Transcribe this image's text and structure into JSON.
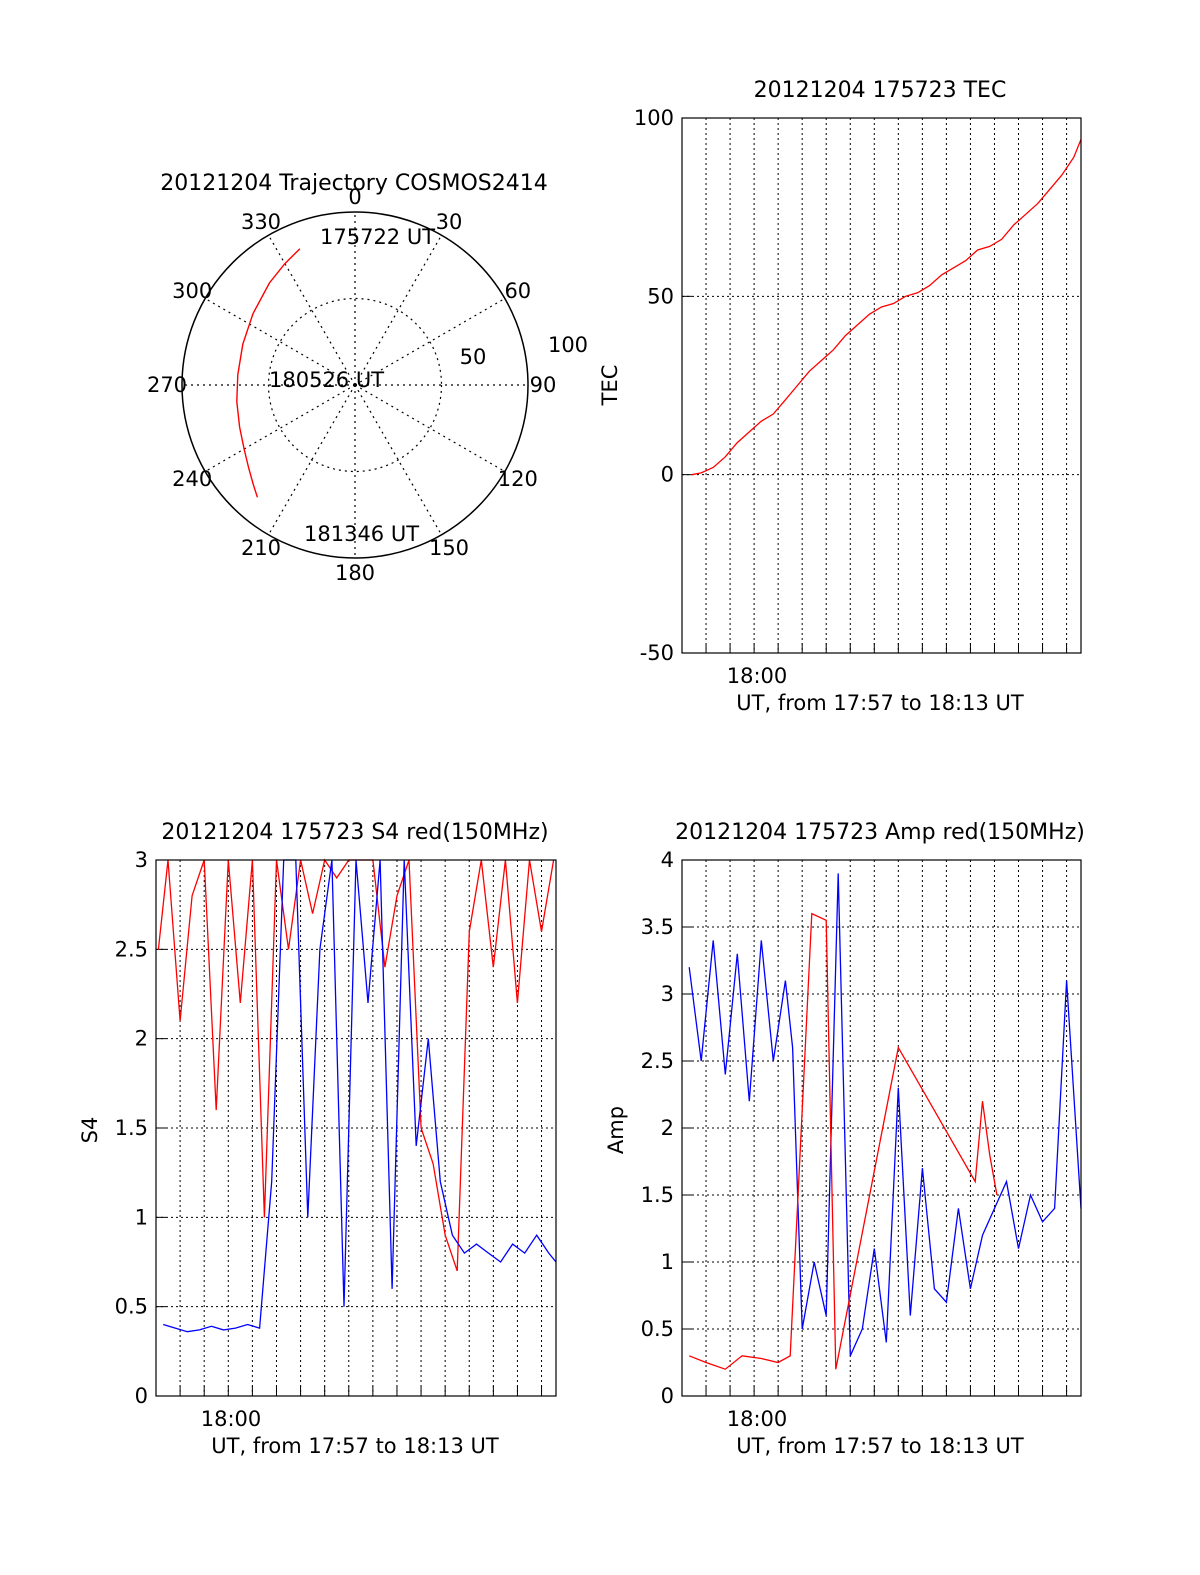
{
  "chart_data": [
    {
      "id": "trajectory",
      "type": "polar",
      "title": "20121204 Trajectory COSMOS2414",
      "azimuth_labels": [
        "0",
        "30",
        "60",
        "90",
        "120",
        "150",
        "180",
        "210",
        "240",
        "270",
        "300",
        "330"
      ],
      "radial_labels": [
        "50",
        "100"
      ],
      "radial_ticks": [
        50,
        100
      ],
      "point_labels": [
        "175722 UT",
        "180526 UT",
        "181346 UT"
      ],
      "grid": true,
      "trajectory_color": "#ff0000",
      "trajectory": {
        "azimuth_deg": [
          338,
          330,
          320,
          305,
          290,
          275,
          262,
          250,
          240,
          232,
          226,
          221
        ],
        "radius": [
          85,
          81,
          77,
          72,
          69,
          68,
          69,
          71,
          74,
          78,
          82,
          86
        ]
      }
    },
    {
      "id": "tec",
      "type": "line",
      "title": "20121204 175723 TEC",
      "ylabel": "TEC",
      "xlabel": "UT, from 17:57 to 18:13 UT",
      "x_tick_labels": [
        "18:00"
      ],
      "y_ticks": [
        -50,
        0,
        50,
        100
      ],
      "ylim": [
        -50,
        100
      ],
      "xlim_minutes_utc": [
        1077.0,
        1093.6
      ],
      "grid": true,
      "series": [
        {
          "color": "#ff0000",
          "x_minutes_utc": [
            1077.4,
            1077.8,
            1078.3,
            1078.8,
            1079.3,
            1079.8,
            1080.3,
            1080.8,
            1081.3,
            1081.8,
            1082.3,
            1082.8,
            1083.3,
            1083.8,
            1084.3,
            1084.8,
            1085.3,
            1085.8,
            1086.3,
            1086.8,
            1087.3,
            1087.8,
            1088.3,
            1088.8,
            1089.3,
            1089.8,
            1090.3,
            1090.8,
            1091.3,
            1091.8,
            1092.3,
            1092.8,
            1093.3,
            1093.6
          ],
          "values": [
            0,
            0.5,
            2,
            5,
            9,
            12,
            15,
            17,
            21,
            25,
            29,
            32,
            35,
            39,
            42,
            45,
            47,
            48,
            50,
            51,
            53,
            56,
            58,
            60,
            63,
            64,
            66,
            70,
            73,
            76,
            80,
            84,
            89,
            94
          ]
        }
      ]
    },
    {
      "id": "s4",
      "type": "line",
      "title": "20121204 175723 S4 red(150MHz)",
      "ylabel": "S4",
      "xlabel": "UT, from 17:57 to 18:13 UT",
      "x_tick_labels": [
        "18:00"
      ],
      "y_ticks": [
        0,
        0.5,
        1,
        1.5,
        2,
        2.5,
        3
      ],
      "y_tick_labels": [
        "0",
        "0.5",
        "1",
        "1.5",
        "2",
        "2.5",
        "3"
      ],
      "ylim": [
        0,
        3
      ],
      "xlim_minutes_utc": [
        1077.0,
        1093.6
      ],
      "grid": true,
      "series": [
        {
          "color": "#ff0000",
          "x_minutes_utc": [
            1077.1,
            1077.5,
            1078.0,
            1078.5,
            1079.0,
            1079.5,
            1080.0,
            1080.5,
            1081.0,
            1081.5,
            1082.0,
            1082.5,
            1083.0,
            1083.5,
            1084.0,
            1084.5,
            1085.0,
            1085.5,
            1086.0,
            1086.5,
            1087.0,
            1087.5,
            1088.0,
            1088.5,
            1089.0,
            1089.5,
            1090.0,
            1090.5,
            1091.0,
            1091.5,
            1092.0,
            1092.5,
            1093.0,
            1093.5
          ],
          "values": [
            2.5,
            3.0,
            2.1,
            2.8,
            3.0,
            1.6,
            3.0,
            2.2,
            3.0,
            1.0,
            3.0,
            2.5,
            3.0,
            2.7,
            3.0,
            2.9,
            3.0,
            3.0,
            3.0,
            2.4,
            2.8,
            3.0,
            1.5,
            1.3,
            0.9,
            0.7,
            2.6,
            3.0,
            2.4,
            3.0,
            2.2,
            3.0,
            2.6,
            3.0
          ]
        },
        {
          "color": "#0000ff",
          "x_minutes_utc": [
            1077.3,
            1077.8,
            1078.3,
            1078.8,
            1079.3,
            1079.8,
            1080.3,
            1080.8,
            1081.3,
            1081.8,
            1082.3,
            1082.8,
            1083.3,
            1083.8,
            1084.3,
            1084.8,
            1085.3,
            1085.8,
            1086.3,
            1086.8,
            1087.3,
            1087.8,
            1088.3,
            1088.8,
            1089.3,
            1089.8,
            1090.3,
            1090.8,
            1091.3,
            1091.8,
            1092.3,
            1092.8,
            1093.3,
            1093.6
          ],
          "values": [
            0.4,
            0.38,
            0.36,
            0.37,
            0.39,
            0.37,
            0.38,
            0.4,
            0.38,
            1.2,
            3.0,
            3.0,
            1.0,
            2.5,
            3.0,
            0.5,
            3.0,
            2.2,
            3.0,
            0.6,
            3.0,
            1.4,
            2.0,
            1.2,
            0.9,
            0.8,
            0.85,
            0.8,
            0.75,
            0.85,
            0.8,
            0.9,
            0.8,
            0.75
          ]
        }
      ]
    },
    {
      "id": "amp",
      "type": "line",
      "title": "20121204 175723 Amp red(150MHz)",
      "ylabel": "Amp",
      "xlabel": "UT, from 17:57 to 18:13 UT",
      "x_tick_labels": [
        "18:00"
      ],
      "y_ticks": [
        0,
        0.5,
        1,
        1.5,
        2,
        2.5,
        3,
        3.5,
        4
      ],
      "y_tick_labels": [
        "0",
        "0.5",
        "1",
        "1.5",
        "2",
        "2.5",
        "3",
        "3.5",
        "4"
      ],
      "ylim": [
        0,
        4
      ],
      "xlim_minutes_utc": [
        1077.0,
        1093.6
      ],
      "grid": true,
      "series": [
        {
          "color": "#0000ff",
          "x_minutes_utc": [
            1077.3,
            1077.8,
            1078.3,
            1078.8,
            1079.3,
            1079.8,
            1080.3,
            1080.8,
            1081.3,
            1081.6,
            1082.0,
            1082.5,
            1083.0,
            1083.5,
            1084.0,
            1084.5,
            1085.0,
            1085.5,
            1086.0,
            1086.5,
            1087.0,
            1087.5,
            1088.0,
            1088.5,
            1089.0,
            1089.5,
            1090.0,
            1090.5,
            1091.0,
            1091.5,
            1092.0,
            1092.5,
            1093.0,
            1093.6
          ],
          "values": [
            3.2,
            2.5,
            3.4,
            2.4,
            3.3,
            2.2,
            3.4,
            2.5,
            3.1,
            2.6,
            0.5,
            1.0,
            0.6,
            3.9,
            0.3,
            0.5,
            1.1,
            0.4,
            2.3,
            0.6,
            1.7,
            0.8,
            0.7,
            1.4,
            0.8,
            1.2,
            1.4,
            1.6,
            1.1,
            1.5,
            1.3,
            1.4,
            3.1,
            1.4
          ]
        },
        {
          "color": "#ff0000",
          "x_minutes_utc": [
            1077.3,
            1078.0,
            1078.8,
            1079.5,
            1080.3,
            1081.0,
            1081.5,
            1082.4,
            1083.0,
            1083.4,
            1086.0,
            1089.2,
            1089.5,
            1089.8,
            1090.1
          ],
          "values": [
            0.3,
            0.25,
            0.2,
            0.3,
            0.28,
            0.25,
            0.3,
            3.6,
            3.55,
            0.2,
            2.6,
            1.6,
            2.2,
            1.8,
            1.5
          ]
        }
      ]
    }
  ]
}
